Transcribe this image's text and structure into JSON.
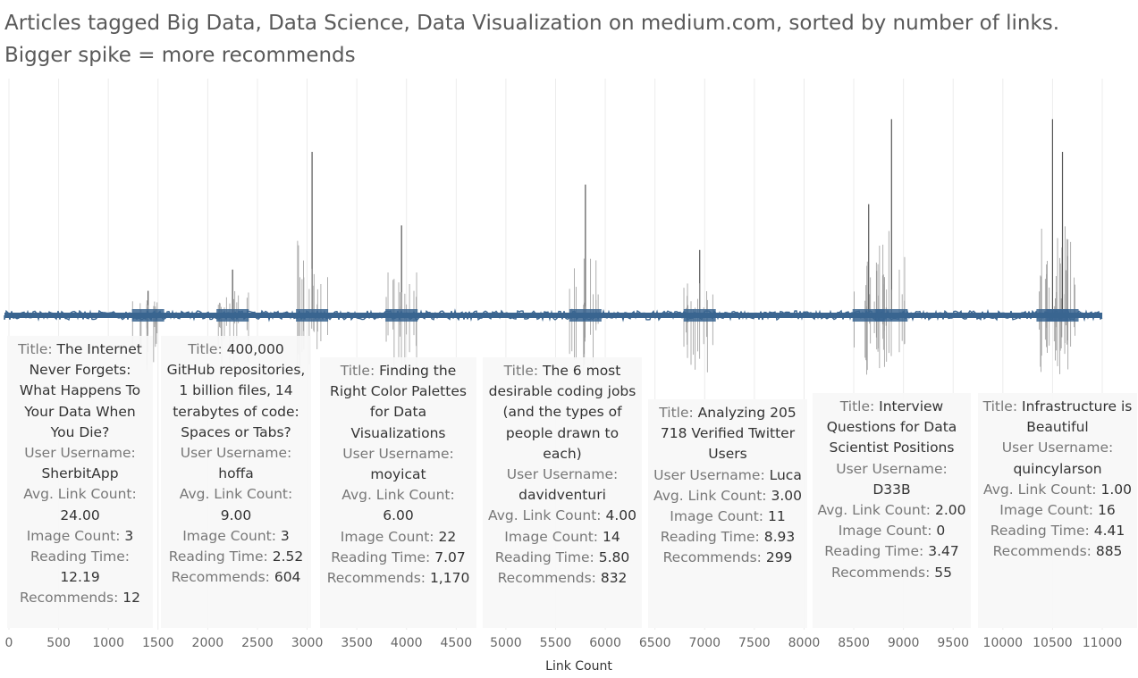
{
  "title": {
    "line1": "Articles tagged Big Data, Data Science, Data Visualization on medium.com, sorted by number of links.",
    "line2": "Bigger spike = more recommends"
  },
  "chart_data": {
    "type": "line",
    "xlabel": "Link Count",
    "ylabel": "",
    "xlim": [
      0,
      11000
    ],
    "xticks": [
      0,
      500,
      1000,
      1500,
      2000,
      2500,
      3000,
      3500,
      4000,
      4500,
      5000,
      5500,
      6000,
      6500,
      7000,
      7500,
      8000,
      8500,
      9000,
      9500,
      10000,
      10500,
      11000
    ],
    "series_color": "#3a6590",
    "spike_color": "#555555",
    "grid": "vertical",
    "spikes": [
      {
        "x": 3050,
        "value": 1.0
      },
      {
        "x": 3950,
        "value": 0.55
      },
      {
        "x": 5800,
        "value": 0.8
      },
      {
        "x": 6950,
        "value": 0.4
      },
      {
        "x": 8650,
        "value": 0.68
      },
      {
        "x": 8880,
        "value": 1.2
      },
      {
        "x": 10500,
        "value": 1.2
      },
      {
        "x": 10600,
        "value": 1.0
      },
      {
        "x": 2250,
        "value": 0.28
      },
      {
        "x": 1400,
        "value": 0.15
      }
    ],
    "annotations": [
      {
        "title_label": "Title:",
        "title": "The Internet Never Forgets: What Happens To Your Data When You Die?",
        "user_label": "User Username:",
        "user": "SherbitApp",
        "link_label": "Avg. Link Count:",
        "link": "24.00",
        "image_label": "Image Count:",
        "image": "3",
        "reading_label": "Reading Time:",
        "reading": "12.19",
        "rec_label": "Recommends:",
        "rec": "12"
      },
      {
        "title_label": "Title:",
        "title": "400,000 GitHub repositories, 1 billion files, 14 terabytes of code: Spaces or Tabs?",
        "user_label": "User Username:",
        "user": "hoffa",
        "link_label": "Avg. Link Count:",
        "link": "9.00",
        "image_label": "Image Count:",
        "image": "3",
        "reading_label": "Reading Time:",
        "reading": "2.52",
        "rec_label": "Recommends:",
        "rec": "604"
      },
      {
        "title_label": "Title:",
        "title": "Finding the Right Color Palettes for Data Visualizations",
        "user_label": "User Username:",
        "user": "moyicat",
        "link_label": "Avg. Link Count:",
        "link": "6.00",
        "image_label": "Image Count:",
        "image": "22",
        "reading_label": "Reading Time:",
        "reading": "7.07",
        "rec_label": "Recommends:",
        "rec": "1,170"
      },
      {
        "title_label": "Title:",
        "title": "The 6 most desirable coding jobs (and the types of people drawn to each)",
        "user_label": "User Username:",
        "user": "davidventuri",
        "link_label": "Avg. Link Count:",
        "link": "4.00",
        "image_label": "Image Count:",
        "image": "14",
        "reading_label": "Reading Time:",
        "reading": "5.80",
        "rec_label": "Recommends:",
        "rec": "832"
      },
      {
        "title_label": "Title:",
        "title": "Analyzing 205 718 Verified Twitter Users",
        "user_label": "User Username:",
        "user": "Luca",
        "link_label": "Avg. Link Count:",
        "link": "3.00",
        "image_label": "Image Count:",
        "image": "11",
        "reading_label": "Reading Time:",
        "reading": "8.93",
        "rec_label": "Recommends:",
        "rec": "299"
      },
      {
        "title_label": "Title:",
        "title": "Interview Questions for Data Scientist Positions",
        "user_label": "User Username:",
        "user": "D33B",
        "link_label": "Avg. Link Count:",
        "link": "2.00",
        "image_label": "Image Count:",
        "image": "0",
        "reading_label": "Reading Time:",
        "reading": "3.47",
        "rec_label": "Recommends:",
        "rec": "55"
      },
      {
        "title_label": "Title:",
        "title": "Infrastructure is Beautiful",
        "user_label": "User Username:",
        "user": "quincylarson",
        "link_label": "Avg. Link Count:",
        "link": "1.00",
        "image_label": "Image Count:",
        "image": "16",
        "reading_label": "Reading Time:",
        "reading": "4.41",
        "rec_label": "Recommends:",
        "rec": "885"
      }
    ]
  }
}
